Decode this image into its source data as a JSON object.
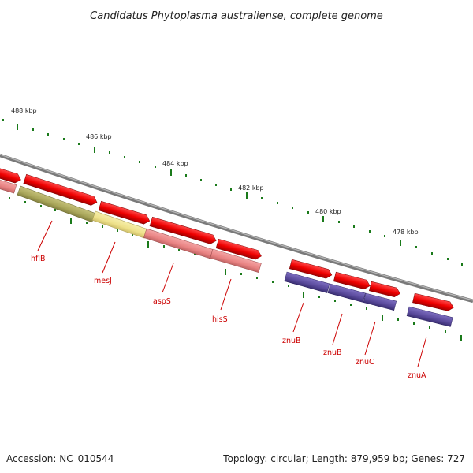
{
  "title": "Candidatus Phytoplasma australiense, complete genome",
  "footer": {
    "accession": "Accession: NC_010544",
    "summary": "Topology: circular; Length: 879,959 bp; Genes: 727"
  },
  "kbp_labels": [
    "488 kbp",
    "486 kbp",
    "484 kbp",
    "482 kbp",
    "480 kbp",
    "478 kbp"
  ],
  "gene_labels": [
    "hflB",
    "mesJ",
    "aspS",
    "hisS",
    "znuB",
    "znuB",
    "znuC",
    "znuA"
  ],
  "colors": {
    "backbone": "#7a7a7a",
    "cds": "#ee0000",
    "hflB": "#a9a65a",
    "mesJ": "#eee18a",
    "aspS_hisS": "#e98383",
    "znu": "#5a4a9c",
    "tick": "#1a7a1a",
    "label": "#cc0000"
  }
}
